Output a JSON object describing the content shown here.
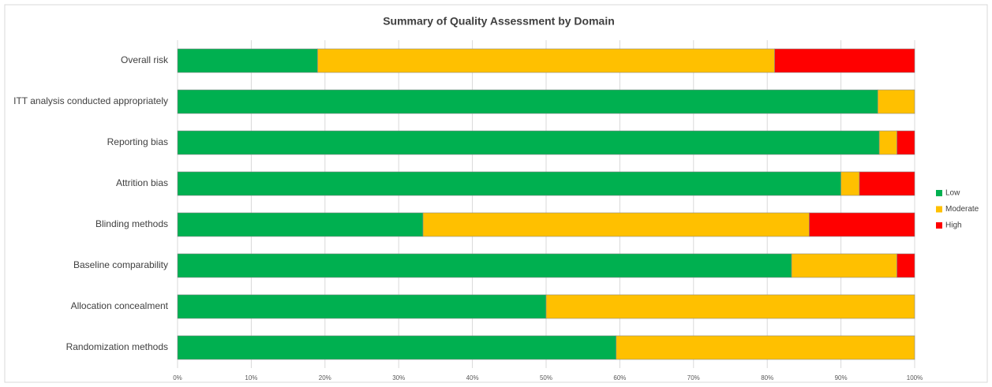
{
  "chart_data": {
    "type": "stacked-bar-horizontal",
    "title": "Summary of Quality Assessment by Domain",
    "categories": [
      "Overall risk",
      "ITT analysis conducted appropriately",
      "Reporting bias",
      "Attrition bias",
      "Blinding methods",
      "Baseline comparability",
      "Allocation concealment",
      "Randomization methods"
    ],
    "series": [
      {
        "name": "Low",
        "color": "#00b050",
        "values": [
          19,
          95,
          95.2,
          90,
          33.3,
          83.3,
          50,
          59.5
        ]
      },
      {
        "name": "Moderate",
        "color": "#ffc000",
        "values": [
          62,
          5,
          2.4,
          2.5,
          52.4,
          14.3,
          50,
          40.5
        ]
      },
      {
        "name": "High",
        "color": "#ff0000",
        "values": [
          19,
          0,
          2.4,
          7.5,
          14.3,
          2.4,
          0,
          0
        ]
      }
    ],
    "xlim": [
      0,
      100
    ],
    "xticks": [
      {
        "value": 0,
        "label": "0%"
      },
      {
        "value": 10,
        "label": "10%"
      },
      {
        "value": 20,
        "label": "20%"
      },
      {
        "value": 30,
        "label": "30%"
      },
      {
        "value": 40,
        "label": "40%"
      },
      {
        "value": 50,
        "label": "50%"
      },
      {
        "value": 60,
        "label": "60%"
      },
      {
        "value": 70,
        "label": "70%"
      },
      {
        "value": 80,
        "label": "80%"
      },
      {
        "value": 90,
        "label": "90%"
      },
      {
        "value": 100,
        "label": "100%"
      }
    ],
    "grid": true,
    "legend": "right"
  }
}
